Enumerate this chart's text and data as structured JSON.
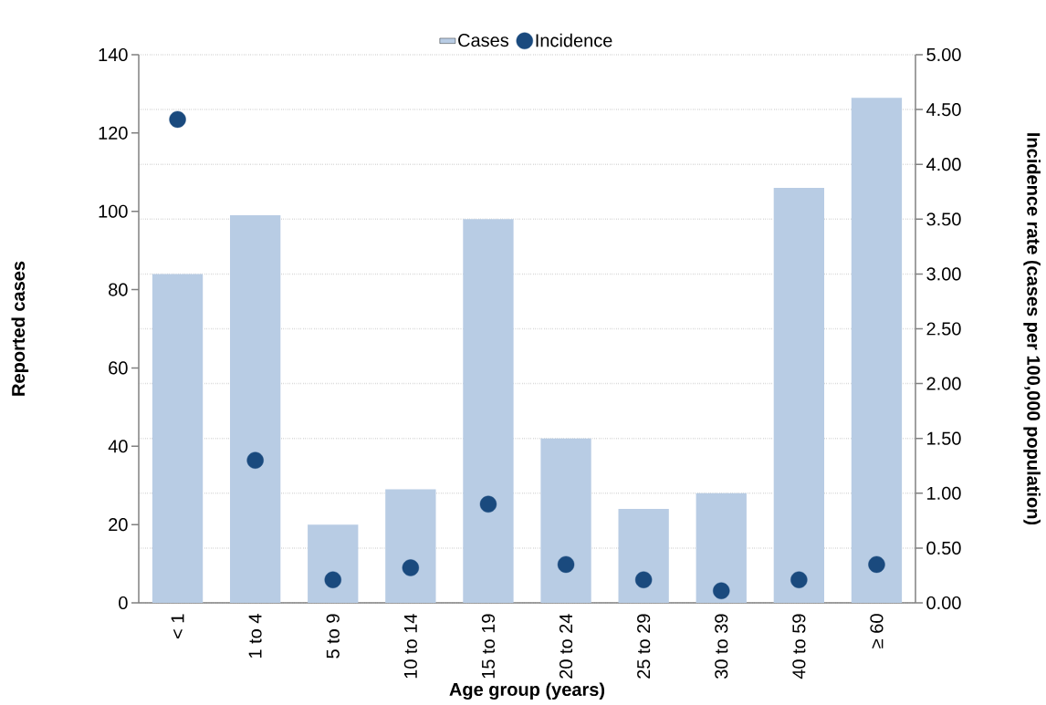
{
  "chart_data": {
    "type": "bar",
    "xlabel": "Age group (years)",
    "ylabel": "Reported cases",
    "y2label": "Incidence rate (cases per 100,000 population)",
    "categories": [
      "< 1",
      "1 to 4",
      "5 to 9",
      "10 to 14",
      "15 to 19",
      "20 to 24",
      "25 to 29",
      "30 to 39",
      "40 to 59",
      "≥ 60"
    ],
    "series": [
      {
        "name": "Cases",
        "color": "#b8cce4",
        "values": [
          84,
          99,
          20,
          29,
          98,
          42,
          24,
          28,
          106,
          129
        ]
      },
      {
        "name": "Incidence",
        "type": "scatter",
        "axis": "y2",
        "color": "#1a4a7e",
        "values": [
          4.41,
          1.3,
          0.21,
          0.32,
          0.9,
          0.35,
          0.21,
          0.11,
          0.21,
          0.35
        ]
      }
    ],
    "ylim": [
      0,
      140
    ],
    "yticks": [
      0,
      20,
      40,
      60,
      80,
      100,
      120,
      140
    ],
    "y2lim": [
      0,
      5
    ],
    "y2ticks": [
      {
        "value": 0,
        "label": "0.00"
      },
      {
        "value": 0.5,
        "label": "0.50"
      },
      {
        "value": 1,
        "label": "1.00"
      },
      {
        "value": 1.5,
        "label": "1.50"
      },
      {
        "value": 2,
        "label": "2.00"
      },
      {
        "value": 2.5,
        "label": "2.50"
      },
      {
        "value": 3,
        "label": "3.00"
      },
      {
        "value": 3.5,
        "label": "3.50"
      },
      {
        "value": 4,
        "label": "4.00"
      },
      {
        "value": 4.5,
        "label": "4.50"
      },
      {
        "value": 5,
        "label": "5.00"
      }
    ],
    "grid": "y2",
    "legend": "top",
    "marker": "circle"
  }
}
